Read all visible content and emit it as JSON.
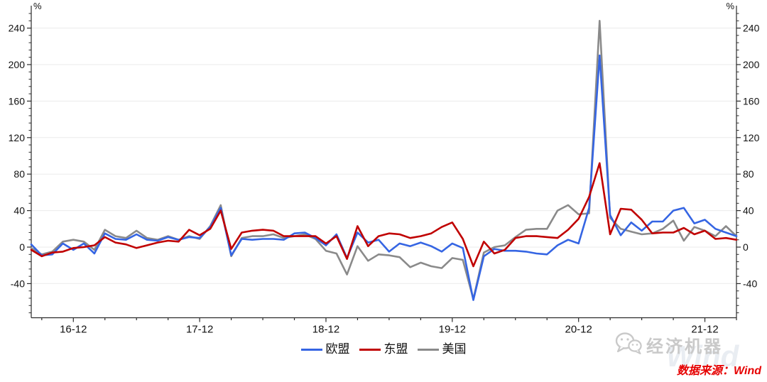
{
  "chart_data": {
    "type": "line",
    "title": "",
    "unit_left": "%",
    "unit_right": "%",
    "grid": "horizontal-major",
    "legend_position": "bottom-center",
    "ylim": [
      -77.4,
      263
    ],
    "yticks": [
      -40,
      0,
      40,
      80,
      120,
      160,
      200,
      240
    ],
    "minor_y_step": 8,
    "minor_x_every_months": 3,
    "x": [
      "2016-08",
      "2016-09",
      "2016-10",
      "2016-11",
      "2016-12",
      "2017-01",
      "2017-02",
      "2017-03",
      "2017-04",
      "2017-05",
      "2017-06",
      "2017-07",
      "2017-08",
      "2017-09",
      "2017-10",
      "2017-11",
      "2017-12",
      "2018-01",
      "2018-02",
      "2018-03",
      "2018-04",
      "2018-05",
      "2018-06",
      "2018-07",
      "2018-08",
      "2018-09",
      "2018-10",
      "2018-11",
      "2018-12",
      "2019-01",
      "2019-02",
      "2019-03",
      "2019-04",
      "2019-05",
      "2019-06",
      "2019-07",
      "2019-08",
      "2019-09",
      "2019-10",
      "2019-11",
      "2019-12",
      "2020-01",
      "2020-02",
      "2020-03",
      "2020-04",
      "2020-05",
      "2020-06",
      "2020-07",
      "2020-08",
      "2020-09",
      "2020-10",
      "2020-11",
      "2020-12",
      "2021-01",
      "2021-02",
      "2021-03",
      "2021-04",
      "2021-05",
      "2021-06",
      "2021-07",
      "2021-08",
      "2021-09",
      "2021-10",
      "2021-11",
      "2021-12",
      "2022-01",
      "2022-02",
      "2022-03"
    ],
    "xticks": [
      {
        "index": 4,
        "label": "16-12"
      },
      {
        "index": 16,
        "label": "17-12"
      },
      {
        "index": 28,
        "label": "18-12"
      },
      {
        "index": 40,
        "label": "19-12"
      },
      {
        "index": 52,
        "label": "20-12"
      },
      {
        "index": 64,
        "label": "21-12"
      }
    ],
    "series": [
      {
        "name": "欧盟",
        "color": "#3565e3",
        "values": [
          3,
          -9,
          -8,
          4,
          -3,
          4,
          -7,
          15,
          9,
          8,
          14,
          8,
          7,
          11,
          8,
          11,
          10,
          22,
          43,
          -9,
          9,
          8,
          9,
          9,
          8,
          15,
          16,
          10,
          2,
          14,
          -12,
          16,
          5,
          8,
          -5,
          4,
          1,
          5,
          1,
          -5,
          4,
          -1,
          -58,
          -10,
          -2,
          -4,
          -4,
          -5,
          -7,
          -8,
          2,
          8,
          4,
          43,
          210,
          35,
          13,
          27,
          18,
          28,
          28,
          40,
          43,
          26,
          30,
          20,
          16,
          12
        ]
      },
      {
        "name": "东盟",
        "color": "#c00000",
        "values": [
          -3,
          -10,
          -6,
          -5,
          -1,
          0,
          2,
          11,
          5,
          3,
          -1,
          2,
          5,
          7,
          6,
          19,
          13,
          20,
          40,
          -2,
          16,
          18,
          19,
          18,
          12,
          12,
          12,
          12,
          4,
          12,
          -13,
          23,
          1,
          12,
          15,
          14,
          10,
          12,
          15,
          22,
          27,
          9,
          -21,
          6,
          -7,
          -3,
          10,
          12,
          12,
          11,
          10,
          19,
          31,
          55,
          92,
          14,
          42,
          41,
          30,
          15,
          16,
          16,
          21,
          14,
          18,
          9,
          10,
          8
        ]
      },
      {
        "name": "美国",
        "color": "#8a8a8a",
        "values": [
          -1,
          -8,
          -5,
          6,
          8,
          6,
          -3,
          19,
          12,
          10,
          18,
          10,
          8,
          12,
          8,
          12,
          9,
          23,
          46,
          -10,
          10,
          12,
          12,
          14,
          10,
          12,
          14,
          9,
          -4,
          -7,
          -30,
          1,
          -15,
          -8,
          -9,
          -11,
          -22,
          -17,
          -21,
          -23,
          -12,
          -14,
          -57,
          -6,
          0,
          2,
          11,
          19,
          20,
          20,
          40,
          46,
          36,
          37,
          248,
          32,
          20,
          17,
          14,
          15,
          20,
          29,
          7,
          22,
          18,
          12,
          23,
          12
        ]
      }
    ]
  },
  "footer": {
    "brand": "经济机器",
    "watermark": "Wind",
    "source": "数据来源：Wind"
  },
  "colors": {
    "axis": "#2b2b2b",
    "grid": "#ebebeb",
    "tick_label": "#111111",
    "brand_text": "#c9c9c9",
    "watermark_text": "#e9edf2",
    "source_text": "#e60000"
  }
}
